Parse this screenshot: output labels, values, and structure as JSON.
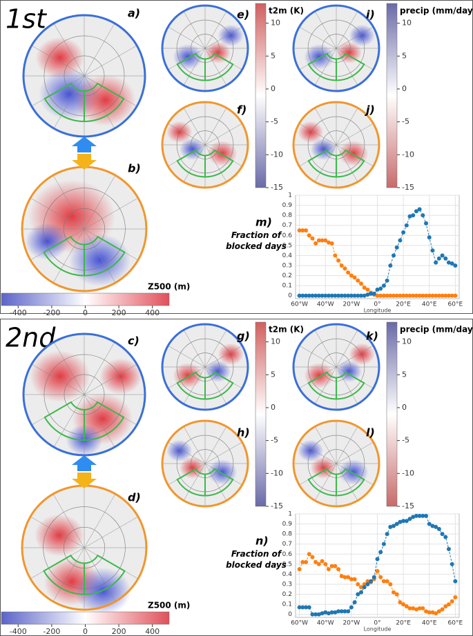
{
  "halves": [
    "1st",
    "2nd"
  ],
  "panel_labels": [
    "a)",
    "b)",
    "c)",
    "d)",
    "e)",
    "f)",
    "g)",
    "h)",
    "i)",
    "j)",
    "k)",
    "l)"
  ],
  "colorbars": [
    {
      "label": "Z500 (m)",
      "lim": [
        -500,
        500
      ],
      "ticks": [
        -400,
        -200,
        0,
        200,
        400
      ],
      "colors": [
        "#5b63c8",
        "#ffffff",
        "#e0505a"
      ]
    },
    {
      "label": "t2m (K)",
      "lim": [
        -15,
        13
      ],
      "ticks": [
        10,
        5,
        0,
        -5,
        -10,
        -15
      ],
      "colors": [
        "#6a6aa8",
        "#ffffff",
        "#d06060"
      ]
    },
    {
      "label": "precip (mm/day)",
      "lim": [
        -15,
        13
      ],
      "ticks": [
        10,
        5,
        0,
        -5,
        -10,
        -15
      ],
      "colors": [
        "#c86a6a",
        "#ffffff",
        "#6a6aa8"
      ]
    }
  ],
  "chart_data": [
    {
      "type": "line",
      "annotation": "m)",
      "ylabel": "Fraction of blocked days",
      "xlabel": "Longitude",
      "x": [
        -60,
        -57.5,
        -55,
        -52.5,
        -50,
        -47.5,
        -45,
        -42.5,
        -40,
        -37.5,
        -35,
        -32.5,
        -30,
        -27.5,
        -25,
        -22.5,
        -20,
        -17.5,
        -15,
        -12.5,
        -10,
        -7.5,
        -5,
        -2.5,
        0,
        2.5,
        5,
        7.5,
        10,
        12.5,
        15,
        17.5,
        20,
        22.5,
        25,
        27.5,
        30,
        32.5,
        35,
        37.5,
        40,
        42.5,
        45,
        47.5,
        50,
        52.5,
        55,
        57.5,
        60
      ],
      "xlim": [
        -63,
        63
      ],
      "ylim": [
        -0.03,
        1
      ],
      "xticks": [
        {
          "value": -60,
          "label": "60°W"
        },
        {
          "value": -40,
          "label": "40°W"
        },
        {
          "value": -20,
          "label": "20°W"
        },
        {
          "value": 0,
          "label": "0°"
        },
        {
          "value": 20,
          "label": "20°E"
        },
        {
          "value": 40,
          "label": "40°E"
        },
        {
          "value": 60,
          "label": "60°E"
        }
      ],
      "yticks": [
        0,
        0.1,
        0.2,
        0.3,
        0.4,
        0.5,
        0.6,
        0.7,
        0.8,
        0.9,
        1
      ],
      "grid": true,
      "series": [
        {
          "color": "#ff7f0e",
          "values": [
            0.65,
            0.65,
            0.65,
            0.6,
            0.57,
            0.52,
            0.55,
            0.55,
            0.55,
            0.53,
            0.52,
            0.4,
            0.35,
            0.3,
            0.27,
            0.23,
            0.2,
            0.18,
            0.15,
            0.12,
            0.08,
            0.06,
            0.03,
            0.01,
            0,
            0,
            0,
            0,
            0,
            0,
            0,
            0,
            0,
            0,
            0,
            0,
            0,
            0,
            0,
            0,
            0,
            0,
            0,
            0,
            0,
            0,
            0,
            0,
            0
          ]
        },
        {
          "color": "#1f77b4",
          "values": [
            0,
            0,
            0,
            0,
            0,
            0,
            0,
            0,
            0,
            0,
            0,
            0,
            0,
            0,
            0,
            0,
            0,
            0,
            0,
            0,
            0,
            0.01,
            0.02,
            0.02,
            0.06,
            0.07,
            0.1,
            0.15,
            0.3,
            0.4,
            0.48,
            0.55,
            0.63,
            0.7,
            0.79,
            0.8,
            0.84,
            0.86,
            0.8,
            0.72,
            0.58,
            0.45,
            0.33,
            0.37,
            0.4,
            0.37,
            0.33,
            0.32,
            0.3
          ]
        }
      ]
    },
    {
      "type": "line",
      "annotation": "n)",
      "ylabel": "Fraction of blocked days",
      "xlabel": "Longitude",
      "x": [
        -60,
        -57.5,
        -55,
        -52.5,
        -50,
        -47.5,
        -45,
        -42.5,
        -40,
        -37.5,
        -35,
        -32.5,
        -30,
        -27.5,
        -25,
        -22.5,
        -20,
        -17.5,
        -15,
        -12.5,
        -10,
        -7.5,
        -5,
        -2.5,
        0,
        2.5,
        5,
        7.5,
        10,
        12.5,
        15,
        17.5,
        20,
        22.5,
        25,
        27.5,
        30,
        32.5,
        35,
        37.5,
        40,
        42.5,
        45,
        47.5,
        50,
        52.5,
        55,
        57.5,
        60
      ],
      "xlim": [
        -63,
        63
      ],
      "ylim": [
        -0.03,
        1
      ],
      "xticks": [
        {
          "value": -60,
          "label": "60°W"
        },
        {
          "value": -40,
          "label": "40°W"
        },
        {
          "value": -20,
          "label": "20°W"
        },
        {
          "value": 0,
          "label": "0°"
        },
        {
          "value": 20,
          "label": "20°E"
        },
        {
          "value": 40,
          "label": "40°E"
        },
        {
          "value": 60,
          "label": "60°E"
        }
      ],
      "yticks": [
        0,
        0.1,
        0.2,
        0.3,
        0.4,
        0.5,
        0.6,
        0.7,
        0.8,
        0.9,
        1
      ],
      "grid": true,
      "series": [
        {
          "color": "#ff7f0e",
          "values": [
            0.45,
            0.52,
            0.52,
            0.6,
            0.57,
            0.52,
            0.5,
            0.53,
            0.5,
            0.45,
            0.48,
            0.48,
            0.45,
            0.38,
            0.37,
            0.37,
            0.35,
            0.35,
            0.3,
            0.27,
            0.3,
            0.33,
            0.32,
            0.35,
            0.43,
            0.37,
            0.33,
            0.33,
            0.3,
            0.22,
            0.2,
            0.12,
            0.1,
            0.08,
            0.06,
            0.06,
            0.05,
            0.06,
            0.06,
            0.03,
            0.02,
            0.02,
            0.01,
            0.03,
            0.05,
            0.08,
            0.1,
            0.13,
            0.17
          ]
        },
        {
          "color": "#1f77b4",
          "values": [
            0.07,
            0.07,
            0.07,
            0.07,
            0,
            0,
            0,
            0.01,
            0.02,
            0.01,
            0.02,
            0.02,
            0.03,
            0.03,
            0.03,
            0.03,
            0.07,
            0.12,
            0.2,
            0.22,
            0.27,
            0.3,
            0.33,
            0.37,
            0.55,
            0.62,
            0.7,
            0.8,
            0.87,
            0.88,
            0.9,
            0.92,
            0.93,
            0.93,
            0.95,
            0.97,
            0.98,
            0.98,
            0.98,
            0.98,
            0.9,
            0.88,
            0.87,
            0.85,
            0.8,
            0.77,
            0.65,
            0.5,
            0.33
          ]
        }
      ]
    }
  ]
}
